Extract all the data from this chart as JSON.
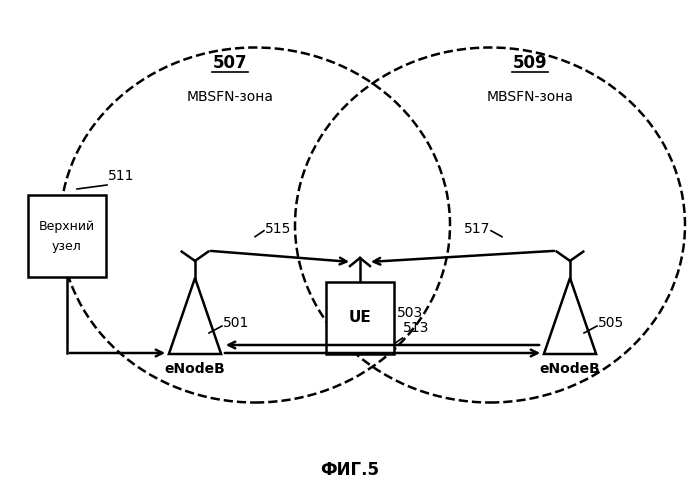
{
  "title": "ФИГ.5",
  "background_color": "#ffffff",
  "zone507_label": "507",
  "zone507_sublabel": "MBSFN-зона",
  "zone509_label": "509",
  "zone509_sublabel": "MBSFN-зона",
  "node511_label": "511",
  "node511_text1": "Верхний",
  "node511_text2": "узел",
  "node501_label": "501",
  "node501_text": "eNodeB",
  "node503_label": "503",
  "node503_text": "UE",
  "node505_label": "505",
  "node505_text": "eNodeB",
  "arrow513_label": "513",
  "arrow515_label": "515",
  "arrow517_label": "517"
}
